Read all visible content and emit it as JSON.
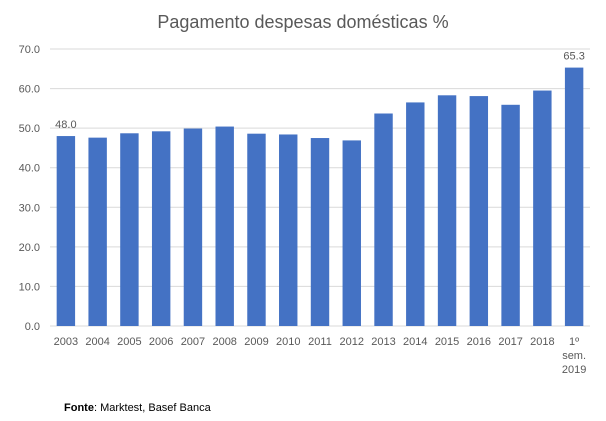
{
  "chart_data": {
    "type": "bar",
    "title": "Pagamento despesas domésticas %",
    "xlabel": "",
    "ylabel": "",
    "ylim": [
      0,
      70
    ],
    "yticks": [
      "0.0",
      "10.0",
      "20.0",
      "30.0",
      "40.0",
      "50.0",
      "60.0",
      "70.0"
    ],
    "grid": true,
    "legend": "none",
    "bar_color": "#4472C4",
    "categories": [
      "2003",
      "2004",
      "2005",
      "2006",
      "2007",
      "2008",
      "2009",
      "2010",
      "2011",
      "2012",
      "2013",
      "2014",
      "2015",
      "2016",
      "2017",
      "2018",
      "1º sem. 2019"
    ],
    "category_lines": [
      [
        "2003"
      ],
      [
        "2004"
      ],
      [
        "2005"
      ],
      [
        "2006"
      ],
      [
        "2007"
      ],
      [
        "2008"
      ],
      [
        "2009"
      ],
      [
        "2010"
      ],
      [
        "2011"
      ],
      [
        "2012"
      ],
      [
        "2013"
      ],
      [
        "2014"
      ],
      [
        "2015"
      ],
      [
        "2016"
      ],
      [
        "2017"
      ],
      [
        "2018"
      ],
      [
        "1º",
        "sem.",
        "2019"
      ]
    ],
    "values": [
      48.0,
      47.6,
      48.7,
      49.2,
      49.9,
      50.4,
      48.6,
      48.4,
      47.5,
      46.9,
      53.7,
      56.5,
      58.3,
      58.1,
      55.9,
      59.5,
      65.3
    ],
    "data_labels": [
      {
        "index": 0,
        "text": "48.0"
      },
      {
        "index": 16,
        "text": "65.3"
      }
    ]
  },
  "source": {
    "label": "Fonte",
    "text": ": Marktest, Basef Banca"
  }
}
